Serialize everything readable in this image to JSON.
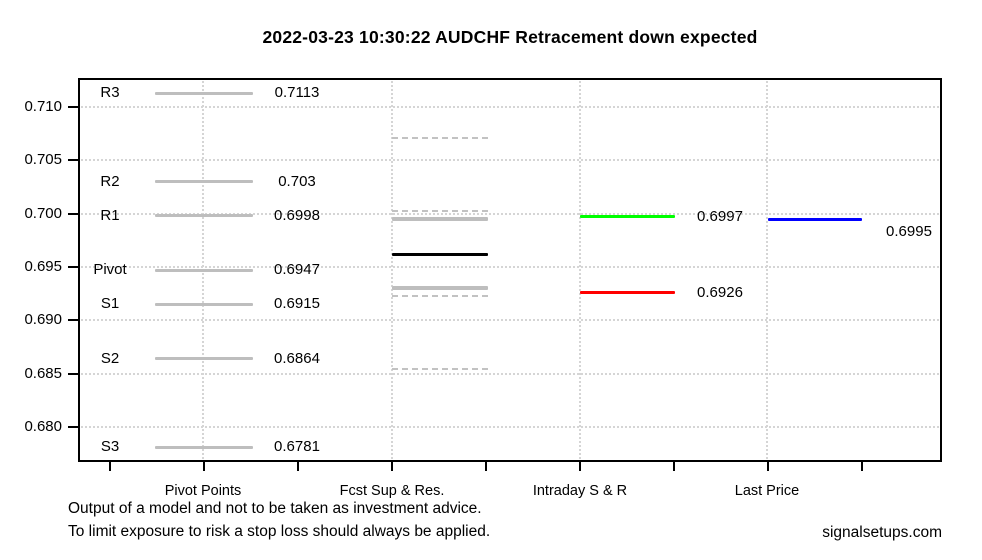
{
  "chart_data": {
    "type": "line",
    "title": "2022-03-23 10:30:22 AUDCHF Retracement down expected",
    "ylim": [
      0.6767,
      0.7127
    ],
    "grid": {
      "horizontal": "dotted",
      "vertical": "dotted",
      "legend": "none"
    },
    "y_ticks": [
      {
        "value": 0.71,
        "label": "0.710"
      },
      {
        "value": 0.705,
        "label": "0.705"
      },
      {
        "value": 0.7,
        "label": "0.700"
      },
      {
        "value": 0.695,
        "label": "0.695"
      },
      {
        "value": 0.69,
        "label": "0.690"
      },
      {
        "value": 0.685,
        "label": "0.685"
      },
      {
        "value": 0.68,
        "label": "0.680"
      }
    ],
    "categories": [
      "Pivot Points",
      "Fcst Sup & Res.",
      "Intraday S & R",
      "Last Price"
    ],
    "pivot_levels": [
      {
        "label": "R3",
        "value": 0.7113,
        "display": "0.7113"
      },
      {
        "label": "R2",
        "value": 0.703,
        "display": "0.703"
      },
      {
        "label": "R1",
        "value": 0.6998,
        "display": "0.6998"
      },
      {
        "label": "Pivot",
        "value": 0.6947,
        "display": "0.6947"
      },
      {
        "label": "S1",
        "value": 0.6915,
        "display": "0.6915"
      },
      {
        "label": "S2",
        "value": 0.6864,
        "display": "0.6864"
      },
      {
        "label": "S3",
        "value": 0.6781,
        "display": "0.6781"
      }
    ],
    "forecast_levels": {
      "solid": [
        {
          "name": "forecast-resistance",
          "value": 0.6995,
          "color": "#bebebe",
          "thickness": 4
        },
        {
          "name": "forecast-mid",
          "value": 0.6962,
          "color": "#000000",
          "thickness": 3
        },
        {
          "name": "forecast-support",
          "value": 0.693,
          "color": "#bebebe",
          "thickness": 4
        }
      ],
      "dashed_bands": [
        {
          "name": "upper-outer-band",
          "value": 0.7071
        },
        {
          "name": "upper-inner-band",
          "value": 0.7003
        },
        {
          "name": "lower-inner-band",
          "value": 0.6923
        },
        {
          "name": "lower-outer-band",
          "value": 0.6854
        }
      ]
    },
    "intraday_levels": [
      {
        "name": "intraday-resistance",
        "value": 0.6997,
        "display": "0.6997",
        "color": "#00ff00"
      },
      {
        "name": "intraday-support",
        "value": 0.6926,
        "display": "0.6926",
        "color": "#ff0000"
      }
    ],
    "last_price": {
      "value": 0.6995,
      "display": "0.6995",
      "color": "#0000ff"
    }
  },
  "footer": {
    "line1": "Output of a model and not to be taken as investment advice.",
    "line2": "To limit exposure to risk a stop loss should always be applied.",
    "brand": "signalsetups.com"
  },
  "colors": {
    "pivot_line": "#bebebe",
    "dashed_band": "#c2c2c2",
    "grid": "#d5d5d5",
    "axis": "#000000"
  }
}
